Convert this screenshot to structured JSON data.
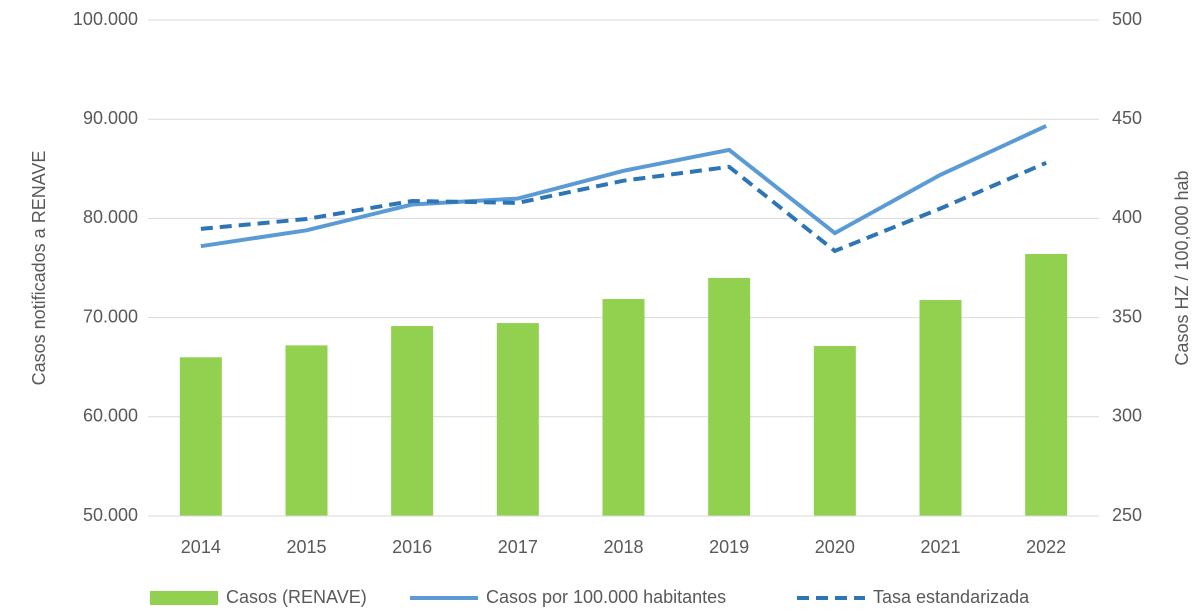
{
  "chart_data": {
    "type": "bar+line",
    "categories": [
      "2014",
      "2015",
      "2016",
      "2017",
      "2018",
      "2019",
      "2020",
      "2021",
      "2022"
    ],
    "series": [
      {
        "name": "Casos  (RENAVE)",
        "type": "bar",
        "color": "#92d050",
        "axis": "y",
        "values": [
          66000,
          67200,
          69150,
          69450,
          71870,
          74000,
          67140,
          71770,
          76410
        ]
      },
      {
        "name": "Casos por 100.000 habitantes",
        "type": "line",
        "dash": false,
        "color": "#5b9bd5",
        "axis": "y2",
        "values": [
          386,
          394,
          407,
          410,
          424,
          434.5,
          392.6,
          422,
          446.6
        ]
      },
      {
        "name": "Tasa estandarizada",
        "type": "line",
        "dash": true,
        "color": "#2e75b6",
        "axis": "y2",
        "values": [
          394.7,
          399.7,
          408.8,
          407.8,
          419,
          426,
          383.6,
          405,
          428
        ]
      }
    ],
    "ylabel": "Casos notificados a RENAVE",
    "y2label": "Casos HZ / 100,000 hab",
    "ylim": [
      50000,
      100000
    ],
    "yticks": [
      {
        "value": 50000,
        "label": "50.000"
      },
      {
        "value": 60000,
        "label": "60.000"
      },
      {
        "value": 70000,
        "label": "70.000"
      },
      {
        "value": 80000,
        "label": "80.000"
      },
      {
        "value": 90000,
        "label": "90.000"
      },
      {
        "value": 100000,
        "label": "100.000"
      }
    ],
    "y2lim": [
      250,
      500
    ],
    "y2ticks": [
      250,
      300,
      350,
      400,
      450,
      500
    ],
    "grid": true,
    "legend": "bottom"
  }
}
